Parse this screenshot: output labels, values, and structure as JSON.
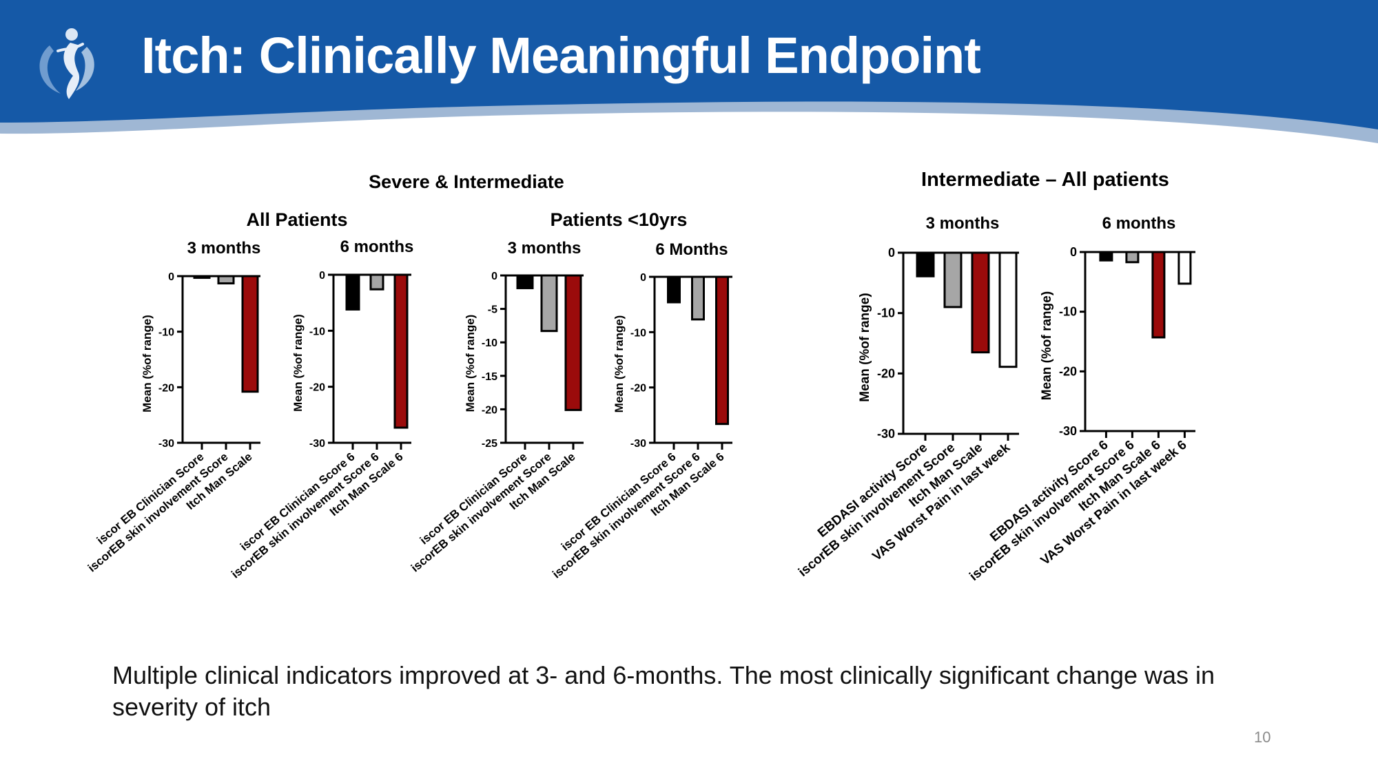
{
  "slide": {
    "title": "Itch: Clinically Meaningful Endpoint",
    "caption": "Multiple clinical indicators improved at 3- and 6-months. The most clinically significant change was in severity of itch",
    "page_number": "10",
    "banner_color": "#1559a7",
    "logo_icon": "figure-swirl-logo-icon"
  },
  "headings": {
    "group1": "Severe & Intermediate",
    "group1_sub1": "All Patients",
    "group1_sub2": "Patients <10yrs",
    "group2": "Intermediate – All patients"
  },
  "colors": {
    "black": "#000000",
    "gray": "#a6a6a6",
    "red": "#9b0b0b",
    "white": "#ffffff"
  },
  "chart_data": [
    {
      "type": "bar",
      "title": "3 months",
      "group": "Severe & Intermediate / All Patients",
      "categories": [
        "iscor EB Clinician Score",
        "iscorEB skin involvement Score",
        "Itch Man Scale"
      ],
      "values": [
        -0.3,
        -1.3,
        -20.8
      ],
      "bar_colors": [
        "black",
        "gray",
        "red"
      ],
      "ylabel": "Mean (%of range)",
      "ylim": [
        -30,
        0
      ],
      "yticks": [
        0,
        -10,
        -20,
        -30
      ]
    },
    {
      "type": "bar",
      "title": "6 months",
      "group": "Severe & Intermediate / All Patients",
      "categories": [
        "iscor EB Clinician Score 6",
        "iscorEB skin involvement Score 6",
        "Itch Man Scale 6"
      ],
      "values": [
        -6.2,
        -2.6,
        -27.3
      ],
      "bar_colors": [
        "black",
        "gray",
        "red"
      ],
      "ylabel": "Mean (%of range)",
      "ylim": [
        -30,
        0
      ],
      "yticks": [
        0,
        -10,
        -20,
        -30
      ]
    },
    {
      "type": "bar",
      "title": "3 months",
      "group": "Severe & Intermediate / Patients <10yrs",
      "categories": [
        "iscor EB Clinician Score",
        "iscorEB skin involvement Score",
        "Itch Man Scale"
      ],
      "values": [
        -1.9,
        -8.3,
        -20.1
      ],
      "bar_colors": [
        "black",
        "gray",
        "red"
      ],
      "ylabel": "Mean (%of range)",
      "ylim": [
        -25,
        0
      ],
      "yticks": [
        0,
        -5,
        -10,
        -15,
        -20,
        -25
      ]
    },
    {
      "type": "bar",
      "title": "6 Months",
      "group": "Severe & Intermediate / Patients <10yrs",
      "categories": [
        "iscor EB Clinician Score 6",
        "iscorEB skin involvement Score 6",
        "Itch Man Scale 6"
      ],
      "values": [
        -4.6,
        -7.7,
        -26.6
      ],
      "bar_colors": [
        "black",
        "gray",
        "red"
      ],
      "ylabel": "Mean (%of range)",
      "ylim": [
        -30,
        0
      ],
      "yticks": [
        0,
        -10,
        -20,
        -30
      ]
    },
    {
      "type": "bar",
      "title": "3 months",
      "group": "Intermediate – All patients",
      "categories": [
        "EBDASI activity Score",
        "iscorEB skin involvement Score",
        "Itch Man Scale",
        "VAS Worst Pain in last week"
      ],
      "values": [
        -3.9,
        -9.0,
        -16.5,
        -18.9
      ],
      "bar_colors": [
        "black",
        "gray",
        "red",
        "white"
      ],
      "ylabel": "Mean (%of range)",
      "ylim": [
        -30,
        0
      ],
      "yticks": [
        0,
        -10,
        -20,
        -30
      ]
    },
    {
      "type": "bar",
      "title": "6 months",
      "group": "Intermediate – All patients",
      "categories": [
        "EBDASI activity Score 6",
        "iscorEB skin involvement Score 6",
        "Itch Man Scale 6",
        "VAS Worst Pain in last week 6"
      ],
      "values": [
        -1.4,
        -1.7,
        -14.3,
        -5.3
      ],
      "bar_colors": [
        "black",
        "gray",
        "red",
        "white"
      ],
      "ylabel": "Mean (%of range)",
      "ylim": [
        -30,
        0
      ],
      "yticks": [
        0,
        -10,
        -20,
        -30
      ]
    }
  ]
}
